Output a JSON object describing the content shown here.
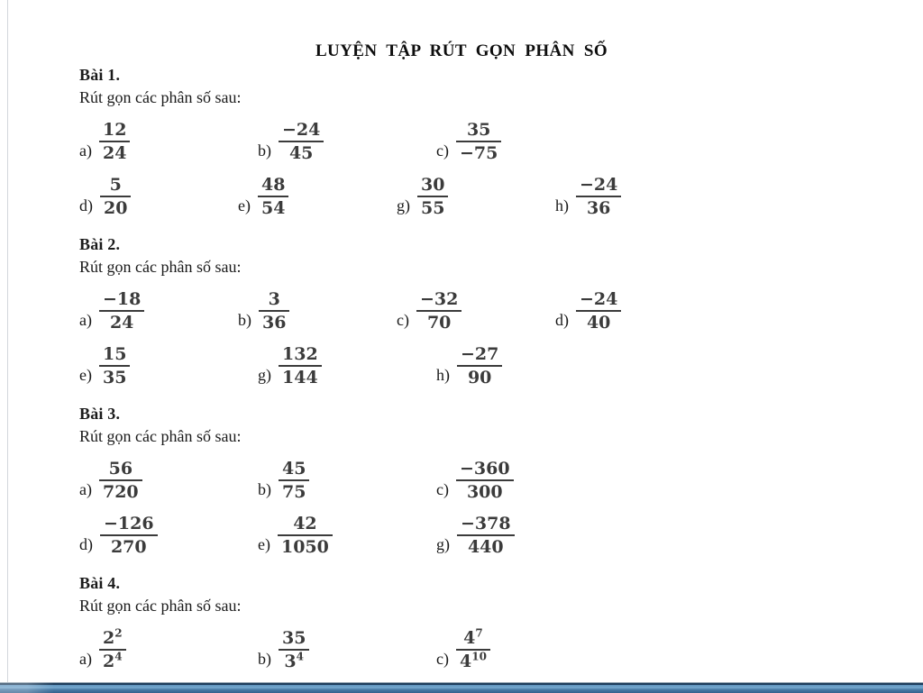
{
  "page": {
    "title": "LUYỆN TẬP RÚT GỌN PHÂN SỐ",
    "background_color": "#ffffff",
    "text_color": "#1a1a1a",
    "fraction_color": "#3b3b3b",
    "left_border_color": "#d3d6dc",
    "bottom_bar_colors": {
      "top_line": "#1d3c5a",
      "light_blue": "#76a9cf",
      "mid_blue": "#4a7ca7",
      "dark_blue": "#33618c"
    }
  },
  "exercises": [
    {
      "heading": "Bài 1.",
      "instruction": "Rút gọn các phân số sau:",
      "rows": [
        [
          {
            "label": "a)",
            "num": "12",
            "den": "24"
          },
          {
            "label": "b)",
            "num": "−24",
            "den": "45"
          },
          {
            "label": "c)",
            "num": "35",
            "den": "−75"
          }
        ],
        [
          {
            "label": "d)",
            "num": "5",
            "den": "20"
          },
          {
            "label": "e)",
            "num": "48",
            "den": "54"
          },
          {
            "label": "g)",
            "num": "30",
            "den": "55"
          },
          {
            "label": "h)",
            "num": "−24",
            "den": "36"
          }
        ]
      ]
    },
    {
      "heading": "Bài 2.",
      "instruction": "Rút gọn các phân số sau:",
      "rows": [
        [
          {
            "label": "a)",
            "num": "−18",
            "den": "24"
          },
          {
            "label": "b)",
            "num": "3",
            "den": "36"
          },
          {
            "label": "c)",
            "num": "−32",
            "den": "70"
          },
          {
            "label": "d)",
            "num": "−24",
            "den": "40"
          }
        ],
        [
          {
            "label": "e)",
            "num": "15",
            "den": "35"
          },
          {
            "label": "g)",
            "num": "132",
            "den": "144"
          },
          {
            "label": "h)",
            "num": "−27",
            "den": "90"
          }
        ]
      ]
    },
    {
      "heading": "Bài 3.",
      "instruction": "Rút gọn các phân số sau:",
      "rows": [
        [
          {
            "label": "a)",
            "num": "56",
            "den": "720"
          },
          {
            "label": "b)",
            "num": "45",
            "den": "75"
          },
          {
            "label": "c)",
            "num": "−360",
            "den": "300"
          }
        ],
        [
          {
            "label": "d)",
            "num": "−126",
            "den": "270"
          },
          {
            "label": "e)",
            "num": "42",
            "den": "1050"
          },
          {
            "label": "g)",
            "num": "−378",
            "den": "440"
          }
        ]
      ]
    },
    {
      "heading": "Bài 4.",
      "instruction": "Rút gọn các phân số sau:",
      "rows": [
        [
          {
            "label": "a)",
            "num": "2",
            "num_sup": "2",
            "den": "2",
            "den_sup": "4"
          },
          {
            "label": "b)",
            "num": "35",
            "den": "3",
            "den_sup": "4"
          },
          {
            "label": "c)",
            "num": "4",
            "num_sup": "7",
            "den": "4",
            "den_sup": "10"
          }
        ]
      ]
    }
  ]
}
